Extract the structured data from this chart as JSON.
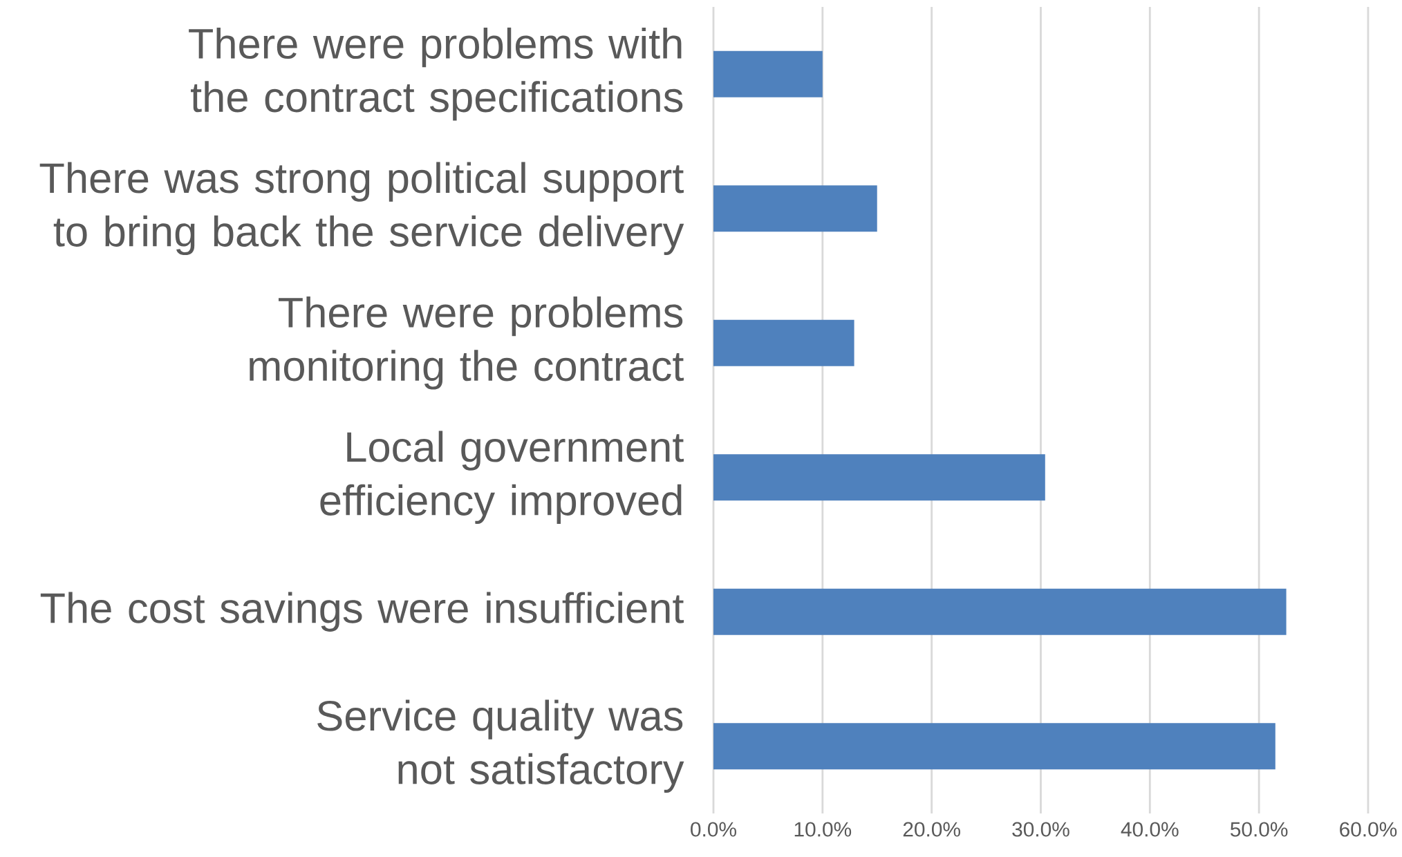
{
  "chart_data": {
    "type": "bar",
    "orientation": "horizontal",
    "categories": [
      "There were problems with the contract specifications",
      "There was strong political support to bring back the service delivery",
      "There were problems monitoring the contract",
      "Local government efficiency improved",
      "The cost savings were insufficient",
      "Service quality was not satisfactory"
    ],
    "values": [
      10.0,
      15.0,
      12.9,
      30.4,
      52.5,
      51.5
    ],
    "color": "#4f81bd",
    "xlim": [
      0,
      60
    ],
    "xticks": [
      {
        "value": 0,
        "label": "0.0%"
      },
      {
        "value": 10,
        "label": "10.0%"
      },
      {
        "value": 20,
        "label": "20.0%"
      },
      {
        "value": 30,
        "label": "30.0%"
      },
      {
        "value": 40,
        "label": "40.0%"
      },
      {
        "value": 50,
        "label": "50.0%"
      },
      {
        "value": 60,
        "label": "60.0%"
      }
    ],
    "grid": "x"
  }
}
